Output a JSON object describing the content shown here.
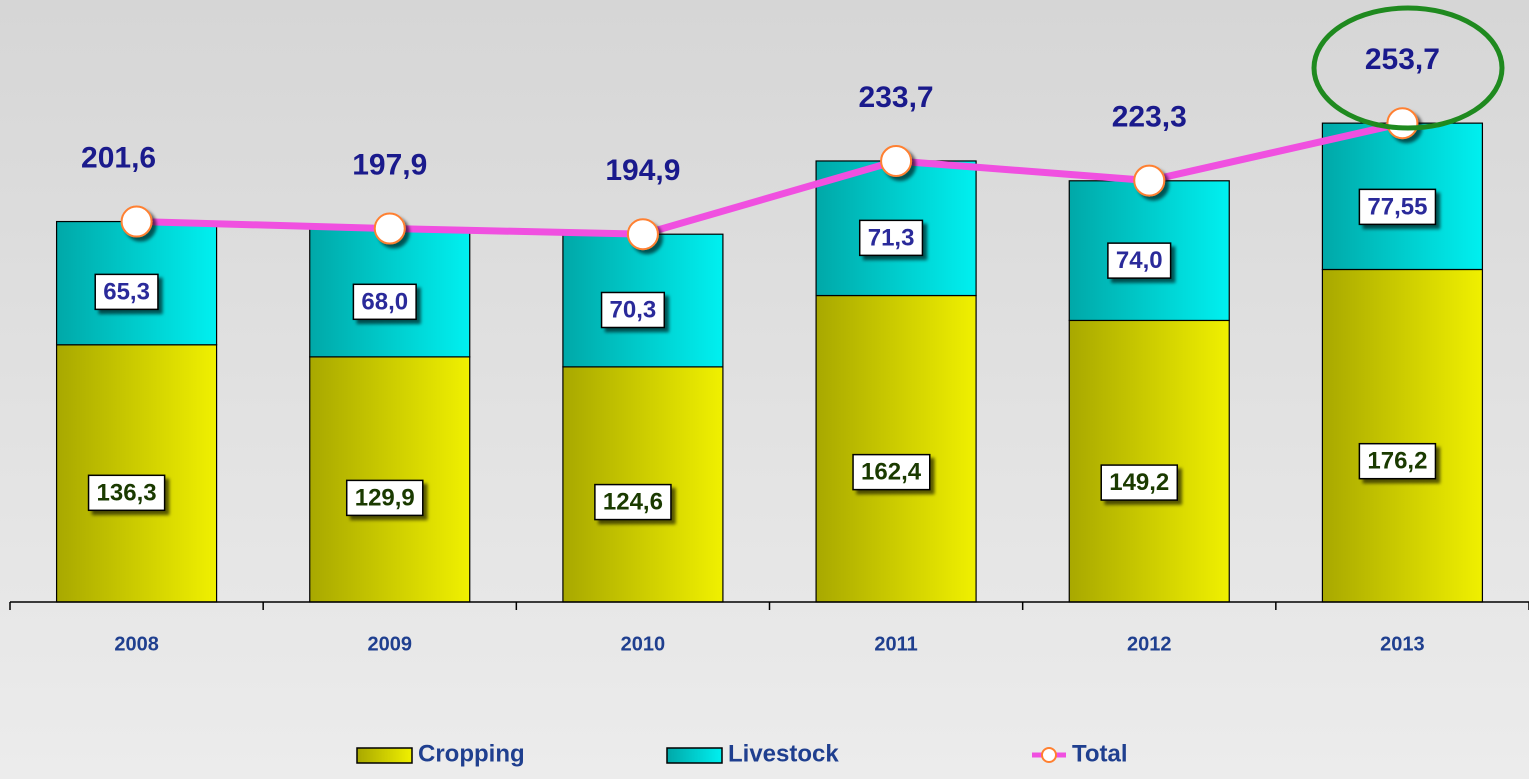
{
  "chart_data": {
    "type": "bar",
    "stacked": true,
    "categories": [
      "2008",
      "2009",
      "2010",
      "2011",
      "2012",
      "2013"
    ],
    "series": [
      {
        "name": "Cropping",
        "color": "#f0f000",
        "values": [
          136.3,
          129.9,
          124.6,
          162.4,
          149.2,
          176.2
        ],
        "value_labels": [
          "136,3",
          "129,9",
          "124,6",
          "162,4",
          "149,2",
          "176,2"
        ]
      },
      {
        "name": "Livestock",
        "color": "#00f0f0",
        "values": [
          65.3,
          68.0,
          70.3,
          71.3,
          74.0,
          77.55
        ],
        "value_labels": [
          "65,3",
          "68,0",
          "70,3",
          "71,3",
          "74,0",
          "77,55"
        ]
      },
      {
        "name": "Total",
        "type": "line",
        "color": "#f050e0",
        "marker_color": "#ff8030",
        "values": [
          201.6,
          197.9,
          194.9,
          233.7,
          223.3,
          253.7
        ],
        "value_labels": [
          "201,6",
          "197,9",
          "194,9",
          "233,7",
          "223,3",
          "253,7"
        ]
      }
    ],
    "ylim": [
      0,
      319
    ]
  }
}
